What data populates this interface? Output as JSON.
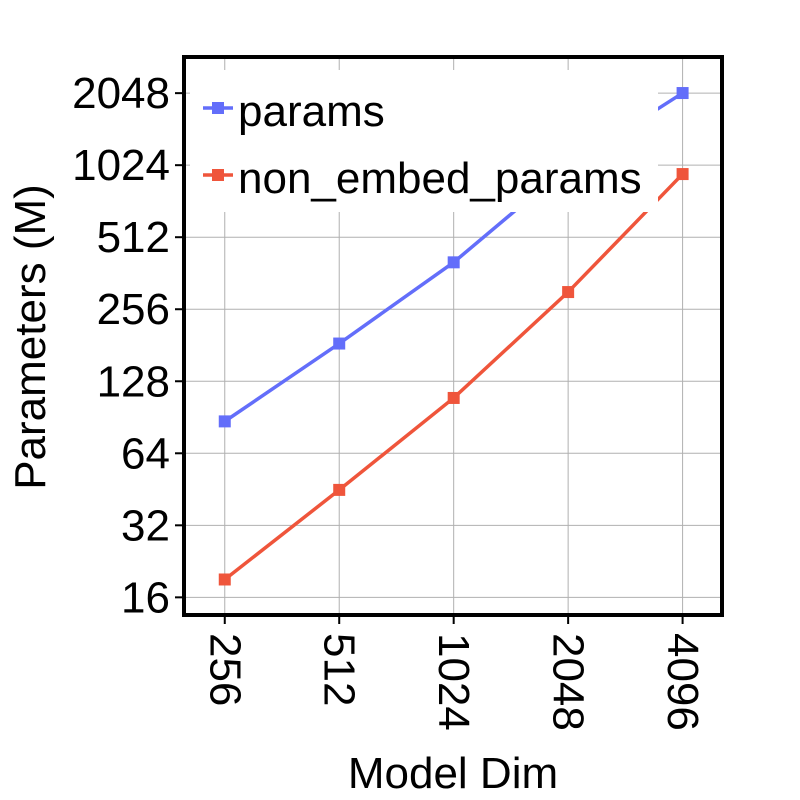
{
  "chart_data": {
    "type": "line",
    "title": "",
    "xlabel": "Model Dim",
    "ylabel": "Parameters (M)",
    "x_scale": "log2",
    "y_scale": "log2",
    "x": [
      256,
      512,
      1024,
      2048,
      4096
    ],
    "x_tick_labels": [
      "256",
      "512",
      "1024",
      "2048",
      "4096"
    ],
    "y_ticks": [
      16,
      32,
      64,
      128,
      256,
      512,
      1024,
      2048
    ],
    "y_tick_labels": [
      "16",
      "32",
      "64",
      "128",
      "256",
      "512",
      "1024",
      "2048"
    ],
    "xlim": [
      200,
      5200
    ],
    "ylim": [
      13.5,
      2900
    ],
    "grid": true,
    "legend_position": "top-left",
    "series": [
      {
        "name": "params",
        "color": "#636efa",
        "values": [
          87,
          184,
          402,
          1015,
          2050
        ]
      },
      {
        "name": "non_embed_params",
        "color": "#ef553b",
        "values": [
          19,
          45,
          109,
          302,
          940
        ]
      }
    ]
  }
}
